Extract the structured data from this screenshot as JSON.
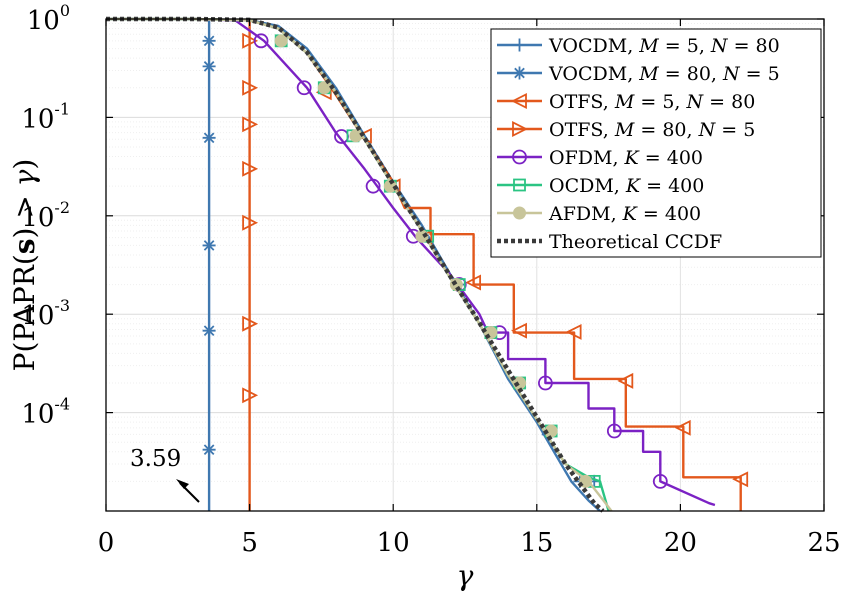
{
  "chart_data": {
    "type": "line",
    "xlabel": "γ",
    "ylabel": "P(PAPR(s) > γ)",
    "xlim": [
      0,
      25
    ],
    "ylim": [
      1e-05,
      1
    ],
    "yscale": "log",
    "grid": true,
    "legend_position": "top-right",
    "x_ticks": [
      "0",
      "5",
      "10",
      "15",
      "20",
      "25"
    ],
    "y_ticks": [
      {
        "base": "10",
        "exp": "0",
        "value": 1
      },
      {
        "base": "10",
        "exp": "-1",
        "value": 0.1
      },
      {
        "base": "10",
        "exp": "-2",
        "value": 0.01
      },
      {
        "base": "10",
        "exp": "-3",
        "value": 0.001
      },
      {
        "base": "10",
        "exp": "-4",
        "value": 0.0001
      }
    ],
    "annotation": {
      "text": "3.59",
      "points_to_x": 3.59
    },
    "series": [
      {
        "name": "VOCDM, M = 5, N = 80",
        "color": "#3f78b0",
        "marker": "plus",
        "points": [
          [
            0,
            1
          ],
          [
            3,
            1
          ],
          [
            5,
            0.97
          ],
          [
            6,
            0.85
          ],
          [
            7,
            0.5
          ],
          [
            8,
            0.2
          ],
          [
            9,
            0.065
          ],
          [
            10,
            0.022
          ],
          [
            11,
            0.008
          ],
          [
            12,
            0.0025
          ],
          [
            13,
            0.0008
          ],
          [
            14,
            0.00022
          ],
          [
            15,
            8e-05
          ],
          [
            15.6,
            4e-05
          ],
          [
            16.2,
            2e-05
          ],
          [
            16.8,
            1.28e-05
          ],
          [
            17.2,
            1e-05
          ]
        ],
        "marker_points": [
          [
            12.3,
            0.002
          ],
          [
            13.4,
            0.00065
          ],
          [
            14.4,
            0.00018
          ],
          [
            15.4,
            6e-05
          ],
          [
            16.5,
            2e-05
          ],
          [
            17,
            2e-05
          ]
        ]
      },
      {
        "name": "VOCDM, M = 80, N = 5",
        "color": "#3f78b0",
        "marker": "asterisk",
        "points": [
          [
            3.59,
            1
          ],
          [
            3.59,
            1e-05
          ]
        ],
        "marker_points": [
          [
            3.59,
            0.6
          ],
          [
            3.59,
            0.33
          ],
          [
            3.59,
            0.062
          ],
          [
            3.59,
            0.005
          ],
          [
            3.59,
            0.00068
          ],
          [
            3.59,
            4.2e-05
          ]
        ]
      },
      {
        "name": "OTFS, M = 5, N = 80",
        "color": "#e3581c",
        "marker": "triangle-left",
        "points": [
          [
            0,
            1
          ],
          [
            3,
            1
          ],
          [
            5,
            0.97
          ],
          [
            6,
            0.8
          ],
          [
            7,
            0.45
          ],
          [
            8,
            0.17
          ],
          [
            9,
            0.06
          ],
          [
            10,
            0.022
          ],
          [
            10.4,
            0.012
          ],
          [
            11.3,
            0.012
          ],
          [
            11.3,
            0.0065
          ],
          [
            12.8,
            0.0065
          ],
          [
            12.8,
            0.002
          ],
          [
            14.2,
            0.002
          ],
          [
            14.2,
            0.00065
          ],
          [
            16.3,
            0.00065
          ],
          [
            16.3,
            0.00022
          ],
          [
            18.1,
            0.00022
          ],
          [
            18.1,
            7.2e-05
          ],
          [
            20.1,
            7.2e-05
          ],
          [
            20.1,
            2.2e-05
          ],
          [
            22.1,
            2.2e-05
          ],
          [
            22.1,
            1e-05
          ]
        ],
        "marker_points": [
          [
            7.6,
            0.18
          ],
          [
            9,
            0.065
          ],
          [
            10,
            0.02
          ],
          [
            11.1,
            0.006
          ],
          [
            12.8,
            0.0021
          ],
          [
            14.4,
            0.00068
          ],
          [
            16.3,
            0.00066
          ],
          [
            18.1,
            0.00021
          ],
          [
            20.1,
            7e-05
          ],
          [
            22.1,
            2.1e-05
          ]
        ]
      },
      {
        "name": "OTFS, M = 80, N = 5",
        "color": "#e3581c",
        "marker": "triangle-right",
        "points": [
          [
            5,
            1
          ],
          [
            5,
            1e-05
          ]
        ],
        "marker_points": [
          [
            5,
            0.6
          ],
          [
            5,
            0.2
          ],
          [
            5,
            0.085
          ],
          [
            5,
            0.03
          ],
          [
            5,
            0.0085
          ],
          [
            5,
            0.0008
          ],
          [
            5,
            0.00015
          ]
        ]
      },
      {
        "name": "OFDM, K = 400",
        "color": "#7b22c4",
        "marker": "circle",
        "points": [
          [
            0,
            1
          ],
          [
            3,
            1
          ],
          [
            4.5,
            0.97
          ],
          [
            5.5,
            0.6
          ],
          [
            7,
            0.2
          ],
          [
            8,
            0.07
          ],
          [
            9,
            0.03
          ],
          [
            10,
            0.012
          ],
          [
            10.8,
            0.006
          ],
          [
            12,
            0.0025
          ],
          [
            13,
            0.001
          ],
          [
            13.3,
            0.00065
          ],
          [
            14,
            0.00065
          ],
          [
            14,
            0.00035
          ],
          [
            15.3,
            0.00035
          ],
          [
            15.3,
            0.0002
          ],
          [
            16.8,
            0.0002
          ],
          [
            16.8,
            0.00011
          ],
          [
            17.7,
            0.00011
          ],
          [
            17.7,
            6.5e-05
          ],
          [
            18.7,
            6.5e-05
          ],
          [
            18.7,
            4e-05
          ],
          [
            19.3,
            4e-05
          ],
          [
            19.3,
            2e-05
          ],
          [
            21,
            1.2e-05
          ],
          [
            21.2,
            1.15e-05
          ]
        ],
        "marker_points": [
          [
            5.4,
            0.6
          ],
          [
            6.9,
            0.2
          ],
          [
            8.2,
            0.064
          ],
          [
            9.3,
            0.02
          ],
          [
            10.7,
            0.0062
          ],
          [
            12.3,
            0.002
          ],
          [
            13.7,
            0.00065
          ],
          [
            15.3,
            0.0002
          ],
          [
            17.7,
            6.5e-05
          ],
          [
            19.3,
            2e-05
          ]
        ]
      },
      {
        "name": "OCDM, K = 400",
        "color": "#2bc483",
        "marker": "square",
        "points": [
          [
            0,
            1
          ],
          [
            3,
            1
          ],
          [
            5,
            0.97
          ],
          [
            6,
            0.8
          ],
          [
            7,
            0.45
          ],
          [
            8,
            0.18
          ],
          [
            9,
            0.06
          ],
          [
            10,
            0.02
          ],
          [
            11,
            0.007
          ],
          [
            12,
            0.0023
          ],
          [
            13,
            0.0008
          ],
          [
            14,
            0.00024
          ],
          [
            15,
            8.5e-05
          ],
          [
            16,
            3e-05
          ],
          [
            16.8,
            2.2e-05
          ],
          [
            17.2,
            2e-05
          ],
          [
            17.5,
            1e-05
          ]
        ],
        "marker_points": [
          [
            6.1,
            0.6
          ],
          [
            7.6,
            0.2
          ],
          [
            8.6,
            0.065
          ],
          [
            9.9,
            0.02
          ],
          [
            11.2,
            0.0062
          ],
          [
            12.3,
            0.002
          ],
          [
            13.4,
            0.00065
          ],
          [
            14.4,
            0.0002
          ],
          [
            15.5,
            6.5e-05
          ],
          [
            17,
            2e-05
          ]
        ]
      },
      {
        "name": "AFDM, K = 400",
        "color": "#c8c59a",
        "marker": "filled-circle",
        "points": [
          [
            0,
            1
          ],
          [
            3,
            1
          ],
          [
            5,
            0.97
          ],
          [
            6,
            0.8
          ],
          [
            7,
            0.45
          ],
          [
            8,
            0.18
          ],
          [
            9,
            0.06
          ],
          [
            10,
            0.02
          ],
          [
            11,
            0.007
          ],
          [
            12,
            0.0023
          ],
          [
            13,
            0.0008
          ],
          [
            14,
            0.00024
          ],
          [
            15,
            8.5e-05
          ],
          [
            16,
            3e-05
          ],
          [
            16.8,
            2e-05
          ],
          [
            17.3,
            1.3e-05
          ],
          [
            17.6,
            1e-05
          ]
        ],
        "marker_points": [
          [
            6.1,
            0.6
          ],
          [
            7.6,
            0.2
          ],
          [
            8.7,
            0.065
          ],
          [
            9.9,
            0.02
          ],
          [
            11,
            0.0062
          ],
          [
            12.2,
            0.002
          ],
          [
            13.4,
            0.00065
          ],
          [
            14.4,
            0.0002
          ],
          [
            15.5,
            6.5e-05
          ],
          [
            16.7,
            2e-05
          ]
        ]
      },
      {
        "name": "Theoretical CCDF",
        "color": "#3a3a3a",
        "marker": "none",
        "dashed": true,
        "points": [
          [
            0,
            1
          ],
          [
            3,
            1
          ],
          [
            5,
            0.98
          ],
          [
            6,
            0.82
          ],
          [
            7,
            0.46
          ],
          [
            8,
            0.18
          ],
          [
            9,
            0.062
          ],
          [
            10,
            0.021
          ],
          [
            11,
            0.0072
          ],
          [
            12,
            0.0024
          ],
          [
            13,
            0.00082
          ],
          [
            14,
            0.00027
          ],
          [
            15,
            9e-05
          ],
          [
            16,
            3e-05
          ],
          [
            17,
            1.2e-05
          ],
          [
            17.3,
            1e-05
          ]
        ],
        "marker_points": []
      }
    ]
  },
  "legend": {
    "items": [
      {
        "pre": "VOCDM, ",
        "v1": "M",
        "e1": " = 5, ",
        "v2": "N",
        "e2": " = 80"
      },
      {
        "pre": "VOCDM, ",
        "v1": "M",
        "e1": " = 80, ",
        "v2": "N",
        "e2": " = 5"
      },
      {
        "pre": "OTFS, ",
        "v1": "M",
        "e1": " = 5, ",
        "v2": "N",
        "e2": " = 80"
      },
      {
        "pre": "OTFS, ",
        "v1": "M",
        "e1": " = 80, ",
        "v2": "N",
        "e2": " = 5"
      },
      {
        "pre": "OFDM, ",
        "v1": "K",
        "e1": " = 400",
        "v2": "",
        "e2": ""
      },
      {
        "pre": "OCDM, ",
        "v1": "K",
        "e1": " = 400",
        "v2": "",
        "e2": ""
      },
      {
        "pre": "AFDM, ",
        "v1": "K",
        "e1": " = 400",
        "v2": "",
        "e2": ""
      },
      {
        "pre": "Theoretical CCDF",
        "v1": "",
        "e1": "",
        "v2": "",
        "e2": ""
      }
    ]
  },
  "labels": {
    "x": "γ",
    "y_prefix": "P(PAPR(",
    "y_bold": "s",
    "y_middle": ") > ",
    "y_gamma": "γ",
    "y_suffix": ")"
  }
}
